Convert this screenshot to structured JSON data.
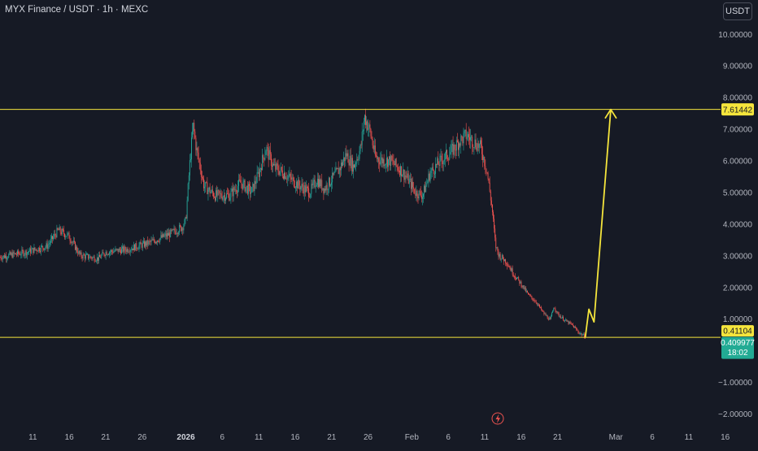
{
  "header": {
    "title": "MYX Finance / USDT · 1h · MEXC",
    "currency_button": "USDT"
  },
  "price_labels": {
    "target": "7.61442",
    "support": "0.41104",
    "current_price": "0.409977",
    "countdown": "18:02"
  },
  "colors": {
    "background": "#161a25",
    "text": "#b2b5be",
    "up": "#26a69a",
    "down": "#ef5350",
    "level_line": "#f5e53c",
    "current_tag": "#22ab94",
    "flash_icon": "#ef5350"
  },
  "icons": {
    "flash": "lightning-icon"
  },
  "chart_data": {
    "type": "candlestick",
    "ylim": [
      -2.2,
      10.5
    ],
    "y_ticks": [
      10,
      9,
      8,
      7,
      6,
      5,
      4,
      3,
      2,
      1,
      -1,
      -2
    ],
    "y_tick_labels": [
      "10.00000",
      "9.00000",
      "8.00000",
      "7.00000",
      "6.00000",
      "5.00000",
      "4.00000",
      "3.00000",
      "2.00000",
      "1.00000",
      "−1.00000",
      "−2.00000"
    ],
    "x_ticks": [
      "11",
      "16",
      "21",
      "26",
      "2026",
      "6",
      "11",
      "16",
      "21",
      "26",
      "Feb",
      "6",
      "11",
      "16",
      "21",
      "Mar",
      "6",
      "11",
      "16"
    ],
    "x_tick_days": [
      -21,
      -16,
      -11,
      -6,
      0,
      5,
      10,
      15,
      20,
      25,
      31,
      36,
      41,
      46,
      51,
      59,
      64,
      69,
      74
    ],
    "x_range_days": [
      -25.5,
      78.5
    ],
    "horizontal_levels": [
      7.61442,
      0.41104
    ],
    "price_path": [
      [
        -25.5,
        2.95
      ],
      [
        -22,
        3.1
      ],
      [
        -19,
        3.3
      ],
      [
        -17.5,
        3.8
      ],
      [
        -16,
        3.6
      ],
      [
        -14.5,
        3.0
      ],
      [
        -12,
        2.9
      ],
      [
        -11,
        3.1
      ],
      [
        -8,
        3.2
      ],
      [
        -5,
        3.4
      ],
      [
        -2,
        3.7
      ],
      [
        -0.5,
        3.9
      ],
      [
        0,
        4.1
      ],
      [
        0.5,
        5.8
      ],
      [
        1,
        7.1
      ],
      [
        1.5,
        6.3
      ],
      [
        2.5,
        5.2
      ],
      [
        4,
        4.9
      ],
      [
        6,
        4.9
      ],
      [
        7.5,
        5.3
      ],
      [
        9,
        5.0
      ],
      [
        10,
        5.6
      ],
      [
        11,
        6.4
      ],
      [
        12,
        5.8
      ],
      [
        13.5,
        5.6
      ],
      [
        15,
        5.3
      ],
      [
        17,
        5.0
      ],
      [
        18,
        5.4
      ],
      [
        19,
        5.1
      ],
      [
        21,
        5.7
      ],
      [
        22,
        6.2
      ],
      [
        23,
        5.8
      ],
      [
        24,
        6.4
      ],
      [
        24.5,
        7.4
      ],
      [
        25.3,
        6.9
      ],
      [
        26,
        6.1
      ],
      [
        27,
        6.0
      ],
      [
        28,
        6.0
      ],
      [
        29.5,
        5.7
      ],
      [
        30.5,
        5.4
      ],
      [
        31.5,
        5.0
      ],
      [
        32.5,
        4.9
      ],
      [
        33.5,
        5.6
      ],
      [
        35,
        6.0
      ],
      [
        36.5,
        6.3
      ],
      [
        37.5,
        6.6
      ],
      [
        38.5,
        6.8
      ],
      [
        39.5,
        6.6
      ],
      [
        40.5,
        6.4
      ],
      [
        41.3,
        5.7
      ],
      [
        42,
        4.5
      ],
      [
        42.5,
        3.3
      ],
      [
        43,
        3.0
      ],
      [
        44,
        2.8
      ],
      [
        45,
        2.4
      ],
      [
        46,
        2.1
      ],
      [
        47,
        1.75
      ],
      [
        48,
        1.55
      ],
      [
        49,
        1.2
      ],
      [
        50,
        0.95
      ],
      [
        50.5,
        1.4
      ],
      [
        51,
        1.15
      ],
      [
        52,
        0.95
      ],
      [
        53,
        0.8
      ],
      [
        54,
        0.55
      ],
      [
        54.8,
        0.43
      ]
    ],
    "projection": {
      "from_day": 54.8,
      "from_price": 0.41,
      "notch_day": 55.3,
      "notch_price": 1.3,
      "mid_day": 56.0,
      "mid_price": 0.9,
      "to_day": 58.3,
      "to_price": 7.61442
    },
    "last_price": 0.409977
  }
}
